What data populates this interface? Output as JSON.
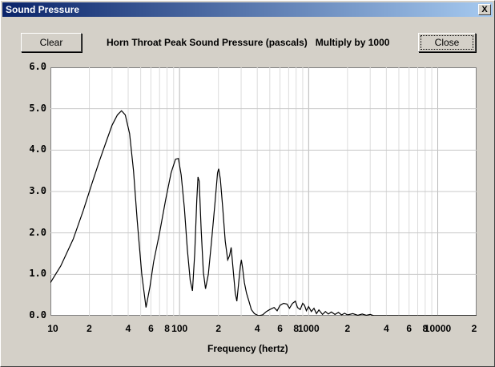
{
  "window": {
    "title": "Sound Pressure",
    "close_glyph": "X"
  },
  "toolbar": {
    "clear_label": "Clear",
    "close_label": "Close",
    "heading": "Horn Throat Peak Sound Pressure (pascals)",
    "multiplier": "Multiply by 1000"
  },
  "chart_data": {
    "type": "line",
    "title": "Horn Throat Peak Sound Pressure (pascals)",
    "subtitle": "Multiply by 1000",
    "xlabel": "Frequency (hertz)",
    "ylabel": "",
    "x_scale": "log",
    "xlim": [
      10,
      20000
    ],
    "ylim": [
      0,
      6
    ],
    "grid": true,
    "ytick_labels": [
      "0.0",
      "1.0",
      "2.0",
      "3.0",
      "4.0",
      "5.0",
      "6.0"
    ],
    "ytick_values": [
      0,
      1,
      2,
      3,
      4,
      5,
      6
    ],
    "xtick_labels": [
      "10",
      "2",
      "4",
      "6",
      "8",
      "100",
      "2",
      "4",
      "6",
      "8",
      "1000",
      "2",
      "4",
      "6",
      "8",
      "10000",
      "2"
    ],
    "xtick_values": [
      10,
      20,
      40,
      60,
      80,
      100,
      200,
      400,
      600,
      800,
      1000,
      2000,
      4000,
      6000,
      8000,
      10000,
      20000
    ],
    "series": [
      {
        "points": [
          [
            10,
            0.8
          ],
          [
            12,
            1.2
          ],
          [
            15,
            1.85
          ],
          [
            18,
            2.55
          ],
          [
            21,
            3.2
          ],
          [
            24,
            3.75
          ],
          [
            27,
            4.2
          ],
          [
            30,
            4.6
          ],
          [
            33,
            4.85
          ],
          [
            35.5,
            4.95
          ],
          [
            38,
            4.85
          ],
          [
            41,
            4.4
          ],
          [
            44,
            3.5
          ],
          [
            47,
            2.3
          ],
          [
            51,
            1.0
          ],
          [
            55,
            0.2
          ],
          [
            59,
            0.7
          ],
          [
            63,
            1.3
          ],
          [
            70,
            2.0
          ],
          [
            78,
            2.8
          ],
          [
            86,
            3.45
          ],
          [
            93,
            3.78
          ],
          [
            98,
            3.8
          ],
          [
            103,
            3.4
          ],
          [
            109,
            2.6
          ],
          [
            115,
            1.6
          ],
          [
            121,
            0.85
          ],
          [
            126,
            0.6
          ],
          [
            131,
            1.5
          ],
          [
            136,
            2.8
          ],
          [
            139,
            3.35
          ],
          [
            142,
            3.25
          ],
          [
            147,
            2.1
          ],
          [
            153,
            1.05
          ],
          [
            159,
            0.65
          ],
          [
            167,
            1.0
          ],
          [
            177,
            1.8
          ],
          [
            188,
            2.7
          ],
          [
            197,
            3.45
          ],
          [
            201,
            3.55
          ],
          [
            207,
            3.3
          ],
          [
            216,
            2.6
          ],
          [
            226,
            1.8
          ],
          [
            236,
            1.35
          ],
          [
            244,
            1.45
          ],
          [
            251,
            1.65
          ],
          [
            256,
            1.35
          ],
          [
            262,
            1.0
          ],
          [
            270,
            0.55
          ],
          [
            278,
            0.35
          ],
          [
            287,
            0.8
          ],
          [
            296,
            1.2
          ],
          [
            301,
            1.35
          ],
          [
            308,
            1.15
          ],
          [
            318,
            0.8
          ],
          [
            330,
            0.55
          ],
          [
            345,
            0.35
          ],
          [
            360,
            0.15
          ],
          [
            380,
            0.05
          ],
          [
            410,
            0.0
          ],
          [
            440,
            0.02
          ],
          [
            470,
            0.1
          ],
          [
            500,
            0.15
          ],
          [
            540,
            0.2
          ],
          [
            570,
            0.12
          ],
          [
            600,
            0.25
          ],
          [
            640,
            0.3
          ],
          [
            680,
            0.28
          ],
          [
            710,
            0.18
          ],
          [
            750,
            0.3
          ],
          [
            790,
            0.35
          ],
          [
            820,
            0.2
          ],
          [
            860,
            0.15
          ],
          [
            900,
            0.3
          ],
          [
            930,
            0.25
          ],
          [
            960,
            0.12
          ],
          [
            1000,
            0.22
          ],
          [
            1050,
            0.1
          ],
          [
            1100,
            0.18
          ],
          [
            1150,
            0.05
          ],
          [
            1200,
            0.14
          ],
          [
            1280,
            0.03
          ],
          [
            1350,
            0.1
          ],
          [
            1420,
            0.04
          ],
          [
            1500,
            0.09
          ],
          [
            1600,
            0.03
          ],
          [
            1700,
            0.08
          ],
          [
            1800,
            0.02
          ],
          [
            1900,
            0.06
          ],
          [
            2000,
            0.02
          ],
          [
            2200,
            0.05
          ],
          [
            2400,
            0.01
          ],
          [
            2600,
            0.04
          ],
          [
            2800,
            0.01
          ],
          [
            3000,
            0.03
          ],
          [
            3200,
            0.0
          ],
          [
            3600,
            0.0
          ],
          [
            20000,
            0.0
          ]
        ]
      }
    ]
  }
}
